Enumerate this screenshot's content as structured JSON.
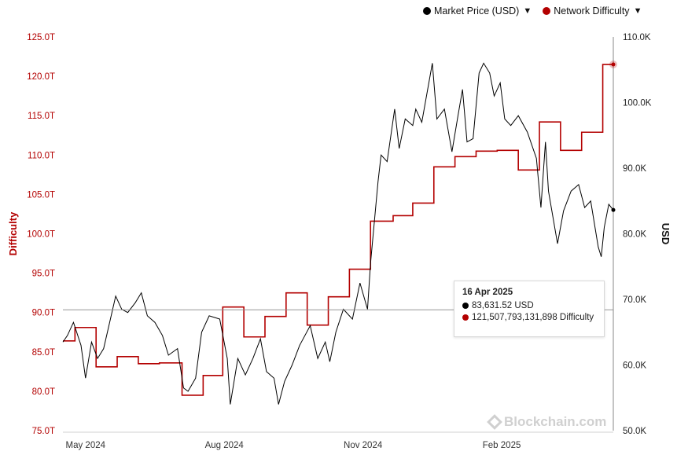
{
  "legend": {
    "items": [
      {
        "label": "Market Price (USD)",
        "color": "#000000"
      },
      {
        "label": "Network Difficulty",
        "color": "#b30000"
      }
    ],
    "chevron_icon": "chevron-down-icon"
  },
  "tooltip": {
    "date": "16 Apr 2025",
    "price_text": "83,631.52 USD",
    "difficulty_text": "121,507,793,131,898 Difficulty"
  },
  "watermark": "Blockchain.com",
  "colors": {
    "price": "#000000",
    "difficulty": "#b30000",
    "crosshair": "#888888"
  },
  "chart_data": {
    "type": "line",
    "title": "",
    "xlabel": "",
    "x_ticks": [
      "May 2024",
      "Aug 2024",
      "Nov 2024",
      "Feb 2025"
    ],
    "y_left": {
      "label": "Difficulty",
      "ticks": [
        "75.0T",
        "80.0T",
        "85.0T",
        "90.0T",
        "95.0T",
        "100.0T",
        "105.0T",
        "110.0T",
        "115.0T",
        "120.0T",
        "125.0T"
      ],
      "ylim": [
        75,
        125
      ],
      "unit": "T"
    },
    "y_right": {
      "label": "USD",
      "ticks": [
        "50.0K",
        "60.0K",
        "70.0K",
        "80.0K",
        "90.0K",
        "100.0K",
        "110.0K"
      ],
      "ylim": [
        50,
        110
      ],
      "unit": "K"
    },
    "x_range": [
      "2024-04-16",
      "2025-04-16"
    ],
    "series": [
      {
        "name": "Market Price (USD)",
        "axis": "right",
        "unit": "K USD",
        "points": [
          [
            "2024-04-16",
            63.5
          ],
          [
            "2024-04-19",
            64.5
          ],
          [
            "2024-04-23",
            66.5
          ],
          [
            "2024-04-28",
            63.0
          ],
          [
            "2024-05-01",
            58.0
          ],
          [
            "2024-05-05",
            63.5
          ],
          [
            "2024-05-09",
            61.0
          ],
          [
            "2024-05-13",
            62.5
          ],
          [
            "2024-05-17",
            66.5
          ],
          [
            "2024-05-21",
            70.5
          ],
          [
            "2024-05-25",
            68.5
          ],
          [
            "2024-05-29",
            68.0
          ],
          [
            "2024-06-03",
            69.5
          ],
          [
            "2024-06-07",
            71.0
          ],
          [
            "2024-06-11",
            67.5
          ],
          [
            "2024-06-16",
            66.5
          ],
          [
            "2024-06-21",
            64.5
          ],
          [
            "2024-06-25",
            61.5
          ],
          [
            "2024-07-01",
            62.5
          ],
          [
            "2024-07-05",
            56.5
          ],
          [
            "2024-07-08",
            56.0
          ],
          [
            "2024-07-13",
            58.0
          ],
          [
            "2024-07-17",
            65.0
          ],
          [
            "2024-07-22",
            67.5
          ],
          [
            "2024-07-29",
            67.0
          ],
          [
            "2024-08-03",
            61.0
          ],
          [
            "2024-08-05",
            54.0
          ],
          [
            "2024-08-10",
            61.0
          ],
          [
            "2024-08-15",
            58.5
          ],
          [
            "2024-08-20",
            61.0
          ],
          [
            "2024-08-25",
            64.0
          ],
          [
            "2024-08-29",
            59.0
          ],
          [
            "2024-09-03",
            58.0
          ],
          [
            "2024-09-06",
            54.0
          ],
          [
            "2024-09-10",
            57.5
          ],
          [
            "2024-09-15",
            60.0
          ],
          [
            "2024-09-20",
            63.0
          ],
          [
            "2024-09-27",
            66.0
          ],
          [
            "2024-10-02",
            61.0
          ],
          [
            "2024-10-07",
            63.5
          ],
          [
            "2024-10-10",
            60.5
          ],
          [
            "2024-10-14",
            65.0
          ],
          [
            "2024-10-19",
            68.5
          ],
          [
            "2024-10-25",
            67.0
          ],
          [
            "2024-10-30",
            72.5
          ],
          [
            "2024-11-04",
            68.5
          ],
          [
            "2024-11-06",
            75.5
          ],
          [
            "2024-11-11",
            88.0
          ],
          [
            "2024-11-13",
            92.0
          ],
          [
            "2024-11-17",
            91.0
          ],
          [
            "2024-11-22",
            99.0
          ],
          [
            "2024-11-25",
            93.0
          ],
          [
            "2024-11-29",
            97.5
          ],
          [
            "2024-12-04",
            96.5
          ],
          [
            "2024-12-06",
            99.0
          ],
          [
            "2024-12-10",
            97.0
          ],
          [
            "2024-12-17",
            106.0
          ],
          [
            "2024-12-20",
            97.5
          ],
          [
            "2024-12-25",
            99.0
          ],
          [
            "2024-12-30",
            92.5
          ],
          [
            "2025-01-03",
            98.0
          ],
          [
            "2025-01-06",
            102.0
          ],
          [
            "2025-01-09",
            94.0
          ],
          [
            "2025-01-13",
            94.5
          ],
          [
            "2025-01-17",
            104.5
          ],
          [
            "2025-01-20",
            106.0
          ],
          [
            "2025-01-24",
            104.5
          ],
          [
            "2025-01-27",
            101.0
          ],
          [
            "2025-01-31",
            103.0
          ],
          [
            "2025-02-03",
            97.5
          ],
          [
            "2025-02-07",
            96.5
          ],
          [
            "2025-02-12",
            98.0
          ],
          [
            "2025-02-18",
            95.5
          ],
          [
            "2025-02-24",
            91.5
          ],
          [
            "2025-02-27",
            84.0
          ],
          [
            "2025-03-02",
            94.0
          ],
          [
            "2025-03-04",
            86.5
          ],
          [
            "2025-03-10",
            78.5
          ],
          [
            "2025-03-14",
            83.5
          ],
          [
            "2025-03-19",
            86.5
          ],
          [
            "2025-03-24",
            87.5
          ],
          [
            "2025-03-28",
            84.0
          ],
          [
            "2025-04-01",
            85.0
          ],
          [
            "2025-04-06",
            78.0
          ],
          [
            "2025-04-08",
            76.5
          ],
          [
            "2025-04-10",
            81.0
          ],
          [
            "2025-04-13",
            84.5
          ],
          [
            "2025-04-16",
            83.6
          ]
        ]
      },
      {
        "name": "Network Difficulty",
        "axis": "left",
        "unit": "T",
        "points": [
          [
            "2024-04-16",
            86.4
          ],
          [
            "2024-04-24",
            88.1
          ],
          [
            "2024-05-08",
            83.1
          ],
          [
            "2024-05-22",
            84.4
          ],
          [
            "2024-06-05",
            83.5
          ],
          [
            "2024-06-19",
            83.6
          ],
          [
            "2024-07-04",
            79.5
          ],
          [
            "2024-07-18",
            82.0
          ],
          [
            "2024-07-31",
            90.7
          ],
          [
            "2024-08-14",
            86.9
          ],
          [
            "2024-08-28",
            89.5
          ],
          [
            "2024-09-11",
            92.5
          ],
          [
            "2024-09-25",
            88.4
          ],
          [
            "2024-10-09",
            92.0
          ],
          [
            "2024-10-23",
            95.5
          ],
          [
            "2024-11-06",
            101.6
          ],
          [
            "2024-11-21",
            102.3
          ],
          [
            "2024-12-04",
            103.9
          ],
          [
            "2024-12-18",
            108.5
          ],
          [
            "2025-01-01",
            109.8
          ],
          [
            "2025-01-15",
            110.5
          ],
          [
            "2025-01-29",
            110.6
          ],
          [
            "2025-02-12",
            108.1
          ],
          [
            "2025-02-26",
            114.2
          ],
          [
            "2025-03-12",
            110.6
          ],
          [
            "2025-03-26",
            112.9
          ],
          [
            "2025-04-09",
            121.5
          ]
        ]
      }
    ],
    "highlight": {
      "x": "2025-04-16",
      "price": 83631.52,
      "difficulty": 121507793131898
    },
    "grid": false,
    "legend_position": "top-right"
  }
}
